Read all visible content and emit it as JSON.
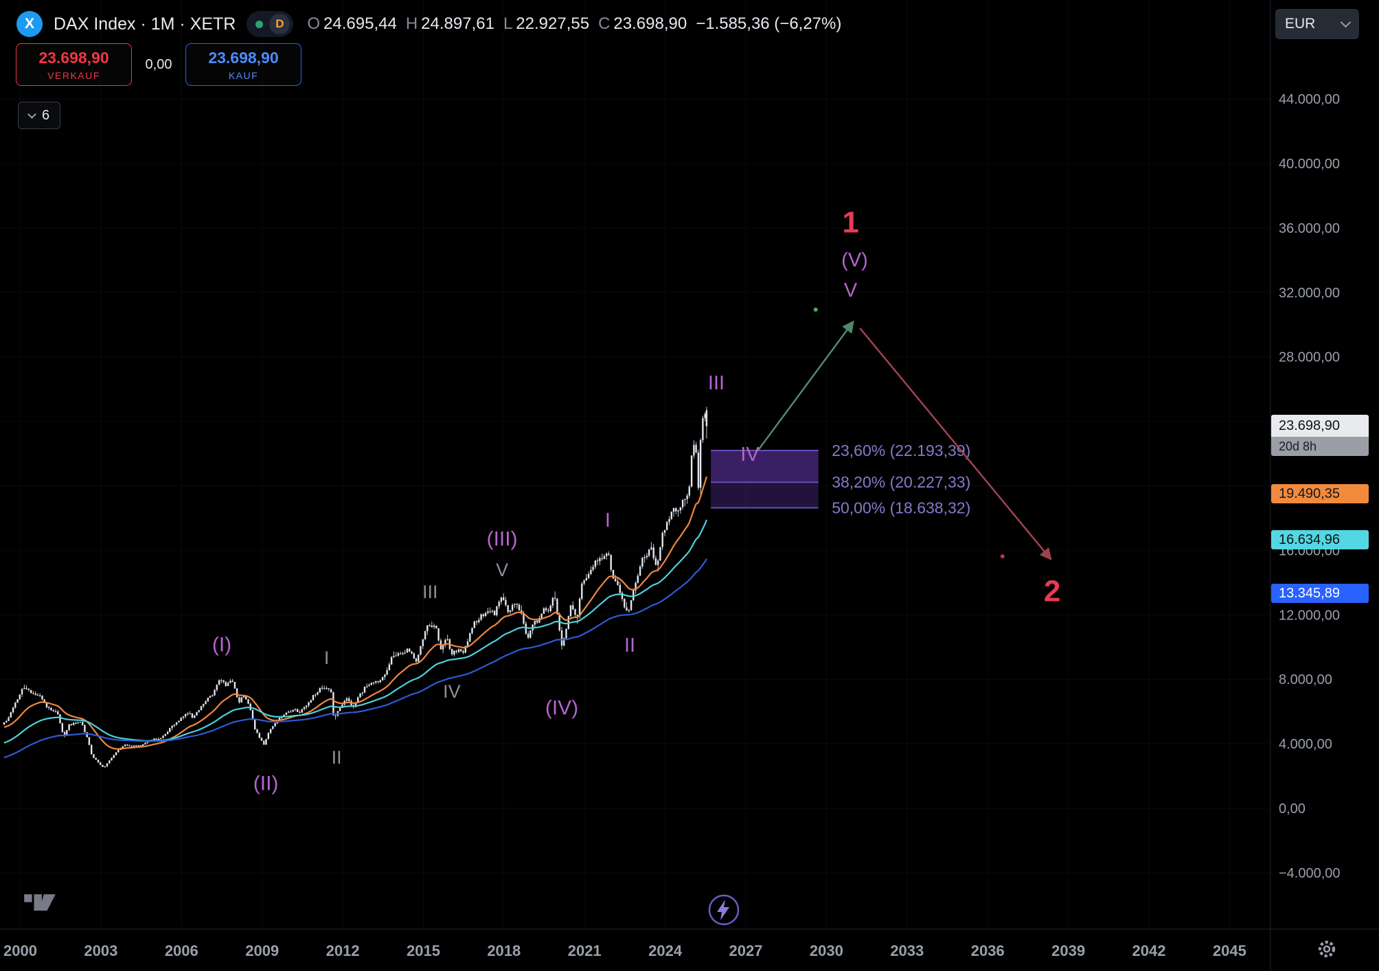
{
  "colors": {
    "accent-red": "#f23645",
    "accent-blue": "#2962ff",
    "logo-blue": "#1d9bf0",
    "d-badge-orange": "#f6a33e",
    "market-dot-green": "#2aa278",
    "badge-current-bg": "#e8eaed",
    "badge-countdown-bg": "#9b9ea6",
    "badge-orange-bg": "#f28a3d",
    "badge-cyan-bg": "#52d7e3",
    "badge-blue-bg": "#2962ff",
    "fib-label": "#8878cc",
    "lightning-purple": "#7059c9"
  },
  "header": {
    "logo_letter": "X",
    "title": "DAX Index · 1M · XETR",
    "badge_label": "D",
    "currency": "EUR",
    "ohlc": {
      "o_key": "O",
      "o": "24.695,44",
      "h_key": "H",
      "h": "24.897,61",
      "l_key": "L",
      "l": "22.927,55",
      "c_key": "C",
      "c": "23.698,90",
      "change": "−1.585,36 (−6,27%)"
    }
  },
  "trade_panel": {
    "sell_price": "23.698,90",
    "sell_label": "VERKAUF",
    "spread": "0,00",
    "buy_price": "23.698,90",
    "buy_label": "KAUF"
  },
  "toolbar": {
    "collapsed_count": "6"
  },
  "price_axis": {
    "labels": [
      {
        "text": "44.000,00",
        "value": 44000
      },
      {
        "text": "40.000,00",
        "value": 40000
      },
      {
        "text": "36.000,00",
        "value": 36000
      },
      {
        "text": "32.000,00",
        "value": 32000
      },
      {
        "text": "28.000,00",
        "value": 28000
      },
      {
        "text": "16.000,00",
        "value": 16000
      },
      {
        "text": "12.000,00",
        "value": 12000
      },
      {
        "text": "8.000,00",
        "value": 8000
      },
      {
        "text": "4.000,00",
        "value": 4000
      },
      {
        "text": "0,00",
        "value": 0
      },
      {
        "text": "−4.000,00",
        "value": -4000
      }
    ],
    "badges": {
      "current": {
        "text": "23.698,90",
        "countdown": "20d 8h",
        "value": 23698.9
      },
      "ma_fast": {
        "text": "19.490,35",
        "value": 19490.35
      },
      "ma_mid": {
        "text": "16.634,96",
        "value": 16634.96
      },
      "ma_slow": {
        "text": "13.345,89",
        "value": 13345.89
      }
    }
  },
  "time_axis": {
    "labels": [
      {
        "text": "2000",
        "year": 2000
      },
      {
        "text": "2003",
        "year": 2003
      },
      {
        "text": "2006",
        "year": 2006
      },
      {
        "text": "2009",
        "year": 2009
      },
      {
        "text": "2012",
        "year": 2012
      },
      {
        "text": "2015",
        "year": 2015
      },
      {
        "text": "2018",
        "year": 2018
      },
      {
        "text": "2021",
        "year": 2021
      },
      {
        "text": "2024",
        "year": 2024
      },
      {
        "text": "2027",
        "year": 2027
      },
      {
        "text": "2030",
        "year": 2030
      },
      {
        "text": "2033",
        "year": 2033
      },
      {
        "text": "2036",
        "year": 2036
      },
      {
        "text": "2039",
        "year": 2039
      },
      {
        "text": "2042",
        "year": 2042
      },
      {
        "text": "2045",
        "year": 2045
      }
    ]
  },
  "chart_data": {
    "type": "candlestick",
    "symbol": "DAX Index",
    "interval": "1M",
    "exchange": "XETR",
    "currency": "EUR",
    "y_axis": {
      "min": -4000,
      "max": 44000,
      "step": 4000
    },
    "x_axis": {
      "start": 1999.4,
      "end": 2045.8
    },
    "last_candle": {
      "open": 24695.44,
      "high": 24897.61,
      "low": 22927.55,
      "close": 23698.9,
      "change": -1585.36,
      "change_pct": -6.27
    },
    "close_keypoints": [
      [
        1999.4,
        5200
      ],
      [
        1999.6,
        5500
      ],
      [
        1999.75,
        6000
      ],
      [
        1999.9,
        6600
      ],
      [
        2000.05,
        6900
      ],
      [
        2000.2,
        7600
      ],
      [
        2000.35,
        7300
      ],
      [
        2000.6,
        7150
      ],
      [
        2000.85,
        6950
      ],
      [
        2001.0,
        6400
      ],
      [
        2001.2,
        6100
      ],
      [
        2001.45,
        6050
      ],
      [
        2001.7,
        4400
      ],
      [
        2001.9,
        5150
      ],
      [
        2002.1,
        5300
      ],
      [
        2002.35,
        5350
      ],
      [
        2002.6,
        4250
      ],
      [
        2002.75,
        3250
      ],
      [
        2002.95,
        2900
      ],
      [
        2003.2,
        2500
      ],
      [
        2003.45,
        3100
      ],
      [
        2003.7,
        3550
      ],
      [
        2003.95,
        3950
      ],
      [
        2004.3,
        3850
      ],
      [
        2004.6,
        3880
      ],
      [
        2004.95,
        4250
      ],
      [
        2005.3,
        4350
      ],
      [
        2005.7,
        5000
      ],
      [
        2005.95,
        5400
      ],
      [
        2006.35,
        5950
      ],
      [
        2006.5,
        5650
      ],
      [
        2006.8,
        6250
      ],
      [
        2007.0,
        6750
      ],
      [
        2007.25,
        7100
      ],
      [
        2007.5,
        7950
      ],
      [
        2007.75,
        7650
      ],
      [
        2007.95,
        8060
      ],
      [
        2008.2,
        6550
      ],
      [
        2008.4,
        7000
      ],
      [
        2008.6,
        6400
      ],
      [
        2008.8,
        4980
      ],
      [
        2009.0,
        4340
      ],
      [
        2009.15,
        3990
      ],
      [
        2009.4,
        4950
      ],
      [
        2009.6,
        5350
      ],
      [
        2009.95,
        5950
      ],
      [
        2010.3,
        6150
      ],
      [
        2010.45,
        5950
      ],
      [
        2010.7,
        6300
      ],
      [
        2010.95,
        6900
      ],
      [
        2011.3,
        7510
      ],
      [
        2011.55,
        7350
      ],
      [
        2011.65,
        7150
      ],
      [
        2011.75,
        5500
      ],
      [
        2011.9,
        6050
      ],
      [
        2012.1,
        6450
      ],
      [
        2012.25,
        6950
      ],
      [
        2012.45,
        6250
      ],
      [
        2012.7,
        6950
      ],
      [
        2012.95,
        7600
      ],
      [
        2013.3,
        7800
      ],
      [
        2013.6,
        8100
      ],
      [
        2013.95,
        9550
      ],
      [
        2014.3,
        9600
      ],
      [
        2014.5,
        9850
      ],
      [
        2014.7,
        9470
      ],
      [
        2014.78,
        8900
      ],
      [
        2014.95,
        9800
      ],
      [
        2015.1,
        10800
      ],
      [
        2015.3,
        11450
      ],
      [
        2015.55,
        11200
      ],
      [
        2015.75,
        9660
      ],
      [
        2015.95,
        10740
      ],
      [
        2016.1,
        9500
      ],
      [
        2016.35,
        9800
      ],
      [
        2016.55,
        9680
      ],
      [
        2016.75,
        10500
      ],
      [
        2016.95,
        11480
      ],
      [
        2017.3,
        12000
      ],
      [
        2017.5,
        12325
      ],
      [
        2017.75,
        12100
      ],
      [
        2017.95,
        13000
      ],
      [
        2018.05,
        13190
      ],
      [
        2018.2,
        12100
      ],
      [
        2018.45,
        12600
      ],
      [
        2018.7,
        12350
      ],
      [
        2018.95,
        10560
      ],
      [
        2019.2,
        11500
      ],
      [
        2019.35,
        11700
      ],
      [
        2019.55,
        12400
      ],
      [
        2019.75,
        12250
      ],
      [
        2019.95,
        13250
      ],
      [
        2020.1,
        11890
      ],
      [
        2020.22,
        9935
      ],
      [
        2020.45,
        11600
      ],
      [
        2020.6,
        12760
      ],
      [
        2020.8,
        11560
      ],
      [
        2020.95,
        13720
      ],
      [
        2021.2,
        14600
      ],
      [
        2021.45,
        15135
      ],
      [
        2021.7,
        15540
      ],
      [
        2021.85,
        15690
      ],
      [
        2021.95,
        15885
      ],
      [
        2022.1,
        14460
      ],
      [
        2022.3,
        14100
      ],
      [
        2022.5,
        12780
      ],
      [
        2022.72,
        12115
      ],
      [
        2022.95,
        13925
      ],
      [
        2023.2,
        15300
      ],
      [
        2023.45,
        15900
      ],
      [
        2023.55,
        16450
      ],
      [
        2023.75,
        14810
      ],
      [
        2023.95,
        16750
      ],
      [
        2024.2,
        17900
      ],
      [
        2024.4,
        18500
      ],
      [
        2024.55,
        18235
      ],
      [
        2024.7,
        18900
      ],
      [
        2024.9,
        19250
      ],
      [
        2024.98,
        19900
      ],
      [
        2025.1,
        22550
      ],
      [
        2025.2,
        22500
      ],
      [
        2025.27,
        21500
      ],
      [
        2025.31,
        19300
      ],
      [
        2025.36,
        22000
      ],
      [
        2025.42,
        23300
      ],
      [
        2025.48,
        24000
      ],
      [
        2025.5,
        24300
      ]
    ],
    "moving_averages": [
      {
        "name": "ma-fast-line",
        "period": 20,
        "seed": 5000,
        "color": "#f0883f",
        "last_value": 19490.35
      },
      {
        "name": "ma-mid-line",
        "period": 48,
        "seed": 4000,
        "color": "#4fd1da",
        "last_value": 16634.96
      },
      {
        "name": "ma-slow-line",
        "period": 96,
        "seed": 3100,
        "color": "#2d5bd8",
        "last_value": 13345.89
      }
    ],
    "fibonacci": {
      "from_t": 2025.7,
      "to_t": 2029.7,
      "label_t": 2030.2,
      "levels": [
        {
          "label": "23,60% (22.193,39)",
          "value": 22193.39
        },
        {
          "label": "38,20% (20.227,33)",
          "value": 20227.33
        },
        {
          "label": "50,00% (18.638,32)",
          "value": 18638.32
        }
      ],
      "fill_top": "rgba(103,58,183,0.55)",
      "fill_bottom": "rgba(103,58,183,0.32)",
      "line_color": "#6a4fb8"
    },
    "wave_colors": {
      "purple": "#b564cf",
      "gray": "#8b8f99",
      "red": "#e93b54"
    },
    "wave_labels": [
      {
        "text": "(I)",
        "t": 2007.5,
        "p": 10140,
        "color": "purple",
        "size": 30
      },
      {
        "text": "(II)",
        "t": 2009.14,
        "p": 1530,
        "color": "purple",
        "size": 30
      },
      {
        "text": "I",
        "t": 2011.4,
        "p": 9330,
        "color": "gray",
        "size": 27
      },
      {
        "text": "II",
        "t": 2011.77,
        "p": 3150,
        "color": "gray",
        "size": 27
      },
      {
        "text": "III",
        "t": 2015.25,
        "p": 13420,
        "color": "gray",
        "size": 27
      },
      {
        "text": "IV",
        "t": 2016.06,
        "p": 7240,
        "color": "gray",
        "size": 27
      },
      {
        "text": "(III)",
        "t": 2017.93,
        "p": 16700,
        "color": "purple",
        "size": 30
      },
      {
        "text": "V",
        "t": 2017.93,
        "p": 14780,
        "color": "gray",
        "size": 27
      },
      {
        "text": "(IV)",
        "t": 2020.15,
        "p": 6220,
        "color": "purple",
        "size": 30
      },
      {
        "text": "I",
        "t": 2021.86,
        "p": 17850,
        "color": "purple",
        "size": 29
      },
      {
        "text": "II",
        "t": 2022.68,
        "p": 10100,
        "color": "purple",
        "size": 29
      },
      {
        "text": "III",
        "t": 2025.9,
        "p": 26370,
        "color": "purple",
        "size": 29
      },
      {
        "text": "IV",
        "t": 2027.15,
        "p": 21940,
        "color": "purple",
        "size": 29
      },
      {
        "text": "V",
        "t": 2030.9,
        "p": 32120,
        "color": "purple",
        "size": 29
      },
      {
        "text": "(V)",
        "t": 2031.05,
        "p": 34000,
        "color": "purple",
        "size": 29
      },
      {
        "text": "1",
        "t": 2030.9,
        "p": 36340,
        "color": "red",
        "size": 44,
        "bold": true
      },
      {
        "text": "2",
        "t": 2038.4,
        "p": 13460,
        "color": "red",
        "size": 44,
        "bold": true
      }
    ],
    "arrows": [
      {
        "from_t": 2027.45,
        "from_p": 22190,
        "to_t": 2030.95,
        "to_p": 30080,
        "color": "#53876a"
      },
      {
        "from_t": 2031.25,
        "from_p": 29780,
        "to_t": 2038.3,
        "to_p": 15550,
        "color": "#9e4352"
      }
    ],
    "dots": [
      {
        "t": 2029.6,
        "p": 30930,
        "color": "#4caf50"
      },
      {
        "t": 2036.55,
        "p": 15630,
        "color": "#b03a48"
      }
    ]
  }
}
